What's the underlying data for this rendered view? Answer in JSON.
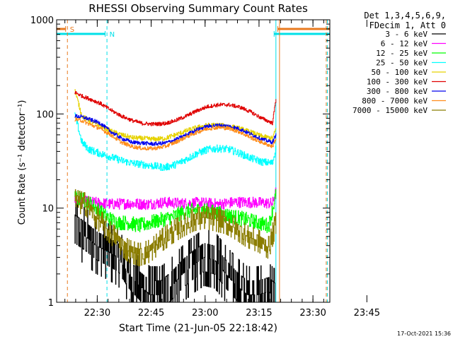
{
  "chart_data": {
    "type": "line",
    "title": "RHESSI Observing Summary Count Rates",
    "xlabel": "Start Time (21-Jun-05 22:18:42)",
    "ylabel": "Count Rate (s⁻¹ detector⁻¹)",
    "yscale": "log",
    "ylim": [
      1,
      1000
    ],
    "xlim_minutes": [
      0,
      76
    ],
    "x_tick_labels": [
      "22:30",
      "22:45",
      "23:00",
      "23:15",
      "23:30",
      "23:45"
    ],
    "x_ticks_minutes": [
      11.3,
      26.3,
      41.3,
      56.3,
      71.3,
      86.3
    ],
    "y_tick_labels": [
      "1",
      "10",
      "100",
      "1000"
    ],
    "y_ticks": [
      1,
      10,
      100,
      1000
    ],
    "legend": {
      "position": "top-right",
      "header_line1": "Det 1,3,4,5,6,9,",
      "header_line2": "FDecim 1, Att 0"
    },
    "footer_timestamp": "17-Oct-2021 15:36",
    "flags": [
      {
        "label": "S",
        "color": "#e87a1f",
        "segments": [
          [
            0,
            2.5
          ],
          [
            61.5,
            76
          ]
        ]
      },
      {
        "label": "N",
        "color": "#00e0e8",
        "segments": [
          [
            0,
            13.5
          ],
          [
            60.5,
            76
          ]
        ]
      }
    ],
    "vlines": [
      {
        "x": 3.0,
        "color": "#e87a1f",
        "dashed": true
      },
      {
        "x": 14.0,
        "color": "#00e0e8",
        "dashed": true
      },
      {
        "x": 61.0,
        "color": "#00e0e8",
        "dashed": false
      },
      {
        "x": 62.0,
        "color": "#e87a1f",
        "dashed": false
      },
      {
        "x": 75.0,
        "color": "#e87a1f",
        "dashed": true
      },
      {
        "x": 75.3,
        "color": "#00e0e8",
        "dashed": true
      }
    ],
    "series": [
      {
        "name": "3 - 6 keV",
        "color": "#000000",
        "x": [
          5,
          8,
          11,
          14,
          17,
          20,
          23,
          26,
          29,
          32,
          35,
          38,
          41,
          44,
          47,
          50,
          53,
          56,
          59,
          61
        ],
        "y": [
          6,
          5,
          4,
          3.5,
          3,
          2,
          1.5,
          1.2,
          1.2,
          1.5,
          2,
          2.5,
          3,
          2.8,
          2,
          1.5,
          1.2,
          1.2,
          1.3,
          1.1
        ],
        "noise": 0.3,
        "stepped": true
      },
      {
        "name": "6 - 12 keV",
        "color": "#ff00ff",
        "x": [
          5,
          10,
          15,
          20,
          25,
          30,
          35,
          40,
          45,
          50,
          55,
          60,
          61
        ],
        "y": [
          12,
          11.5,
          11,
          11.2,
          11,
          11.5,
          11.2,
          11.4,
          11,
          11.6,
          11.5,
          11.2,
          15
        ],
        "noise": 0.06,
        "stepped": false
      },
      {
        "name": "12 - 25 keV",
        "color": "#00ff00",
        "x": [
          5,
          8,
          11,
          14,
          17,
          20,
          23,
          26,
          29,
          32,
          35,
          38,
          41,
          44,
          47,
          50,
          53,
          56,
          59,
          61
        ],
        "y": [
          13,
          12,
          10,
          8,
          7,
          7,
          6.5,
          7,
          7.5,
          8,
          9,
          9.5,
          9.5,
          9,
          8.5,
          8,
          7.5,
          7,
          6.5,
          14
        ],
        "noise": 0.08,
        "stepped": false
      },
      {
        "name": "25 - 50 keV",
        "color": "#00ffff",
        "x": [
          5,
          7,
          9,
          12,
          15,
          18,
          21,
          24,
          27,
          30,
          33,
          36,
          39,
          42,
          45,
          48,
          51,
          54,
          57,
          60,
          61
        ],
        "y": [
          100,
          50,
          42,
          38,
          35,
          32,
          30,
          29,
          28,
          27,
          29,
          33,
          38,
          42,
          43,
          42,
          38,
          34,
          31,
          30,
          44
        ],
        "noise": 0.04,
        "stepped": false
      },
      {
        "name": "50 - 100 keV",
        "color": "#e6d200",
        "x": [
          5,
          7,
          9,
          12,
          15,
          18,
          21,
          24,
          27,
          30,
          33,
          36,
          39,
          42,
          45,
          48,
          51,
          54,
          57,
          60,
          61
        ],
        "y": [
          180,
          95,
          85,
          75,
          66,
          60,
          56,
          55,
          54,
          55,
          60,
          66,
          72,
          76,
          76,
          74,
          70,
          64,
          58,
          55,
          70
        ],
        "noise": 0.025,
        "stepped": false
      },
      {
        "name": "100 - 300 keV",
        "color": "#e00000",
        "x": [
          5,
          7,
          9,
          12,
          15,
          18,
          21,
          24,
          27,
          30,
          33,
          36,
          39,
          42,
          45,
          48,
          51,
          54,
          57,
          60,
          61
        ],
        "y": [
          170,
          155,
          145,
          130,
          110,
          95,
          85,
          79,
          78,
          79,
          85,
          95,
          108,
          120,
          125,
          125,
          118,
          105,
          90,
          80,
          145
        ],
        "noise": 0.02,
        "stepped": false
      },
      {
        "name": "300 - 800 keV",
        "color": "#0000ee",
        "x": [
          5,
          7,
          9,
          12,
          15,
          18,
          21,
          24,
          27,
          30,
          33,
          36,
          39,
          42,
          45,
          48,
          51,
          54,
          57,
          60,
          61
        ],
        "y": [
          95,
          93,
          88,
          80,
          65,
          55,
          50,
          49,
          48,
          49,
          53,
          60,
          68,
          74,
          76,
          74,
          69,
          61,
          54,
          50,
          60
        ],
        "noise": 0.02,
        "stepped": false
      },
      {
        "name": "800 - 7000 keV",
        "color": "#ff8c1a",
        "x": [
          5,
          7,
          9,
          12,
          15,
          18,
          21,
          24,
          27,
          30,
          33,
          36,
          39,
          42,
          45,
          48,
          51,
          54,
          57,
          60,
          61
        ],
        "y": [
          88,
          85,
          78,
          70,
          60,
          50,
          45,
          43,
          43,
          45,
          50,
          57,
          64,
          70,
          72,
          70,
          64,
          56,
          50,
          45,
          55
        ],
        "noise": 0.02,
        "stepped": false
      },
      {
        "name": "7000 - 15000 keV",
        "color": "#8b7d00",
        "x": [
          5,
          8,
          11,
          14,
          17,
          20,
          23,
          26,
          29,
          32,
          35,
          38,
          41,
          44,
          47,
          50,
          53,
          56,
          59,
          61
        ],
        "y": [
          12,
          11,
          8,
          6,
          4.5,
          3.5,
          3.2,
          3.5,
          4.5,
          5.5,
          6.5,
          7.5,
          8,
          7.5,
          7,
          6,
          5,
          4.5,
          3.8,
          7
        ],
        "noise": 0.12,
        "stepped": true
      }
    ]
  }
}
